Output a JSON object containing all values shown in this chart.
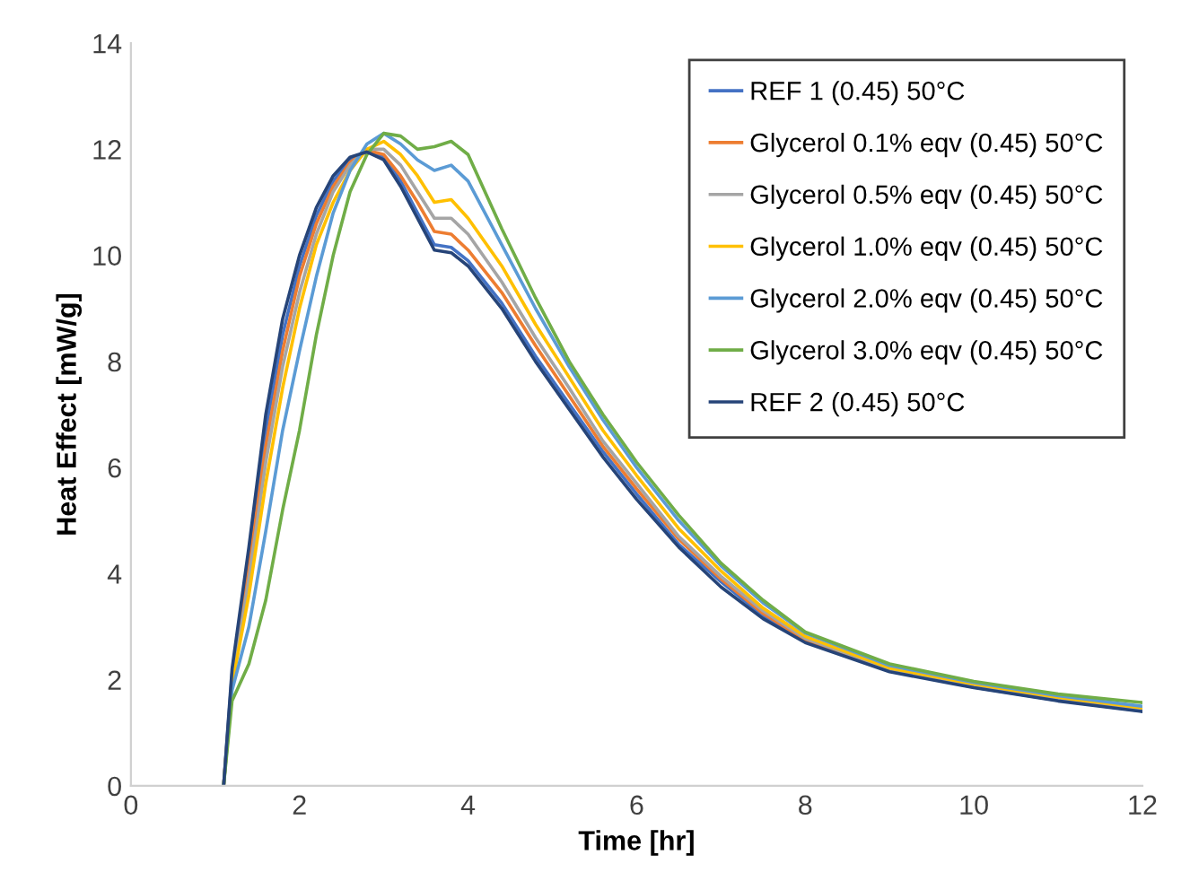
{
  "chart_data": {
    "type": "line",
    "xlabel": "Time [hr]",
    "ylabel": "Heat Effect [mW/g]",
    "x": [
      1.1,
      1.2,
      1.4,
      1.6,
      1.8,
      2.0,
      2.2,
      2.4,
      2.6,
      2.8,
      3.0,
      3.2,
      3.4,
      3.6,
      3.8,
      4.0,
      4.4,
      4.8,
      5.2,
      5.6,
      6,
      6.5,
      7,
      7.5,
      8,
      9,
      10,
      11,
      12
    ],
    "xlim": [
      0,
      12
    ],
    "xticks": [
      0,
      2,
      4,
      6,
      8,
      10,
      12
    ],
    "ylim": [
      0,
      14
    ],
    "yticks": [
      0,
      2,
      4,
      6,
      8,
      10,
      12,
      14
    ],
    "grid": false,
    "legend": "top right",
    "marker": "none",
    "line_style": "solid",
    "series": [
      {
        "name": "REF 1 (0.45) 50°C",
        "color": "#4472c4",
        "values": [
          0,
          2.1,
          4.3,
          6.7,
          8.5,
          9.8,
          10.75,
          11.4,
          11.8,
          11.95,
          11.85,
          11.4,
          10.8,
          10.2,
          10.15,
          9.9,
          9.1,
          8.1,
          7.2,
          6.3,
          5.5,
          4.55,
          3.85,
          3.2,
          2.72,
          2.17,
          1.86,
          1.61,
          1.41
        ]
      },
      {
        "name": "Glycerol 0.1% eqv (0.45) 50°C",
        "color": "#ed7d31",
        "values": [
          0,
          2.0,
          4.1,
          6.4,
          8.2,
          9.6,
          10.6,
          11.3,
          11.75,
          11.98,
          11.9,
          11.5,
          11.0,
          10.45,
          10.4,
          10.1,
          9.3,
          8.3,
          7.35,
          6.4,
          5.6,
          4.65,
          3.9,
          3.25,
          2.75,
          2.2,
          null,
          null,
          null
        ]
      },
      {
        "name": "Glycerol 0.5% eqv (0.45) 50°C",
        "color": "#a5a5a5",
        "values": [
          0,
          1.95,
          3.9,
          6.1,
          7.9,
          9.3,
          10.4,
          11.2,
          11.7,
          12.0,
          12.0,
          11.7,
          11.2,
          10.7,
          10.7,
          10.4,
          9.5,
          8.45,
          7.5,
          6.5,
          5.7,
          4.7,
          3.95,
          3.3,
          2.78,
          2.2,
          1.9,
          1.65,
          1.45
        ]
      },
      {
        "name": "Glycerol 1.0% eqv (0.45) 50°C",
        "color": "#ffc000",
        "values": [
          0,
          1.9,
          3.6,
          5.7,
          7.5,
          9.0,
          10.2,
          11.0,
          11.6,
          12.0,
          12.15,
          11.9,
          11.5,
          11.0,
          11.05,
          10.7,
          9.8,
          8.7,
          7.7,
          6.7,
          5.85,
          4.85,
          4.05,
          3.35,
          2.82,
          2.22,
          1.92,
          1.67,
          1.47
        ]
      },
      {
        "name": "Glycerol 2.0% eqv (0.45) 50°C",
        "color": "#5b9bd5",
        "values": [
          0,
          1.8,
          3.0,
          4.8,
          6.7,
          8.2,
          9.6,
          10.8,
          11.6,
          12.1,
          12.3,
          12.1,
          11.8,
          11.6,
          11.7,
          11.4,
          10.2,
          9.0,
          7.9,
          6.9,
          6.0,
          5.0,
          4.15,
          3.45,
          2.88,
          2.27,
          1.95,
          1.7,
          1.5
        ]
      },
      {
        "name": "Glycerol 3.0% eqv (0.45) 50°C",
        "color": "#70ad47",
        "values": [
          0,
          1.6,
          2.3,
          3.5,
          5.2,
          6.7,
          8.5,
          10.0,
          11.2,
          11.9,
          12.3,
          12.25,
          12.0,
          12.05,
          12.15,
          11.9,
          10.5,
          9.2,
          8.0,
          7.0,
          6.1,
          5.1,
          4.2,
          3.5,
          2.9,
          2.3,
          1.97,
          1.73,
          1.57
        ]
      },
      {
        "name": "REF 2 (0.45) 50°C",
        "color": "#264478",
        "values": [
          0,
          2.2,
          4.5,
          7.0,
          8.8,
          10.0,
          10.9,
          11.5,
          11.85,
          11.95,
          11.8,
          11.3,
          10.7,
          10.1,
          10.05,
          9.8,
          9.0,
          8.0,
          7.1,
          6.2,
          5.4,
          4.5,
          3.75,
          3.15,
          2.7,
          2.15,
          1.85,
          1.6,
          1.4
        ]
      }
    ]
  }
}
